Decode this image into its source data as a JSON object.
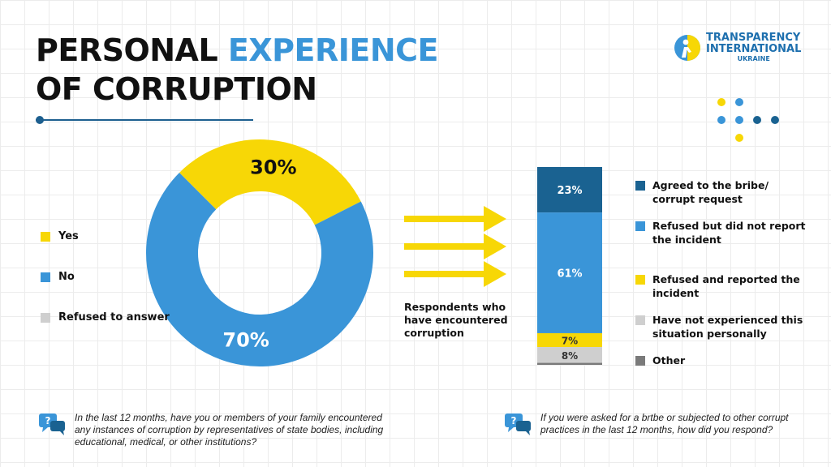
{
  "title": {
    "line1_part1": "PERSONAL",
    "line1_accent": "EXPERIENCE",
    "line2": "OF CORRUPTION"
  },
  "logo": {
    "line1": "TRANSPARENCY",
    "line2": "INTERNATIONAL",
    "line3": "UKRAINE"
  },
  "colors": {
    "blue": "#3a95d8",
    "dark_blue": "#1a6291",
    "yellow": "#f7d706",
    "light_gray": "#cfcfcf",
    "dark_gray": "#7a7a7a",
    "text": "#111111"
  },
  "respondents_label": "Respondents who have encountered corruption",
  "questions": {
    "left": "In the last 12 months, have you or members of your family encountered any instances of corruption by representatives of state bodies, including educational, medical, or other institutions?",
    "right": "If you were asked for a brtbe or subjected to other corrupt practices in the last 12 months, how did you respond?"
  },
  "chart_data": [
    {
      "type": "pie",
      "categories": [
        "Yes",
        "No",
        "Refused to answer"
      ],
      "values": [
        30,
        70,
        0
      ],
      "labels": [
        "30%",
        "70%",
        ""
      ],
      "colors": [
        "#f7d706",
        "#3a95d8",
        "#cfcfcf"
      ],
      "legend": "left"
    },
    {
      "type": "bar",
      "stacked": true,
      "categories": [
        "Agreed to the bribe/ corrupt request",
        "Refused but did not report the incident",
        "Refused and reported the incident",
        "Have not experienced this situation personally",
        "Other"
      ],
      "values": [
        23,
        61,
        7,
        8,
        1
      ],
      "labels": [
        "23%",
        "61%",
        "7%",
        "8%",
        ""
      ],
      "colors": [
        "#1a6291",
        "#3a95d8",
        "#f7d706",
        "#cfcfcf",
        "#7a7a7a"
      ],
      "legend": "right"
    }
  ]
}
